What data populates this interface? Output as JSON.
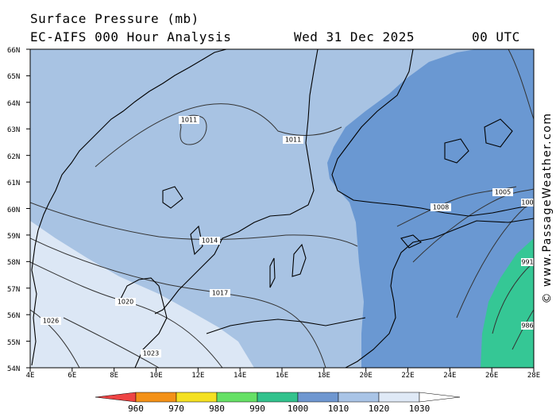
{
  "header": {
    "title_line1": "Surface Pressure (mb)",
    "title_line2": "EC-AIFS 000 Hour Analysis",
    "date": "Wed 31 Dec 2025",
    "time": "00 UTC"
  },
  "map": {
    "lat_labels": [
      "66N",
      "65N",
      "64N",
      "63N",
      "62N",
      "61N",
      "60N",
      "59N",
      "58N",
      "57N",
      "56N",
      "55N",
      "54N"
    ],
    "lon_labels": [
      "4E",
      "6E",
      "8E",
      "10E",
      "12E",
      "14E",
      "16E",
      "18E",
      "20E",
      "22E",
      "24E",
      "26E",
      "28E"
    ],
    "isobar_labels": [
      "1011",
      "1011",
      "1014",
      "1017",
      "1020",
      "1026",
      "1023",
      "1008",
      "1005",
      "100",
      "991",
      "986"
    ],
    "fill_colors": {
      "band_1010_1020": "#a8c3e3",
      "band_1020_1030": "#dce7f5",
      "band_1000_1010": "#6a98d2",
      "band_990_1000": "#35c795"
    }
  },
  "colorbar": {
    "labels": [
      "960",
      "970",
      "980",
      "990",
      "1000",
      "1010",
      "1020",
      "1030"
    ],
    "colors": [
      "#ee4444",
      "#f39118",
      "#f4e022",
      "#66e066",
      "#33c28d",
      "#6f97d0",
      "#a9c4e6",
      "#dfe9f6",
      "#ffffff"
    ]
  },
  "credit": "© www.PassageWeather.com"
}
